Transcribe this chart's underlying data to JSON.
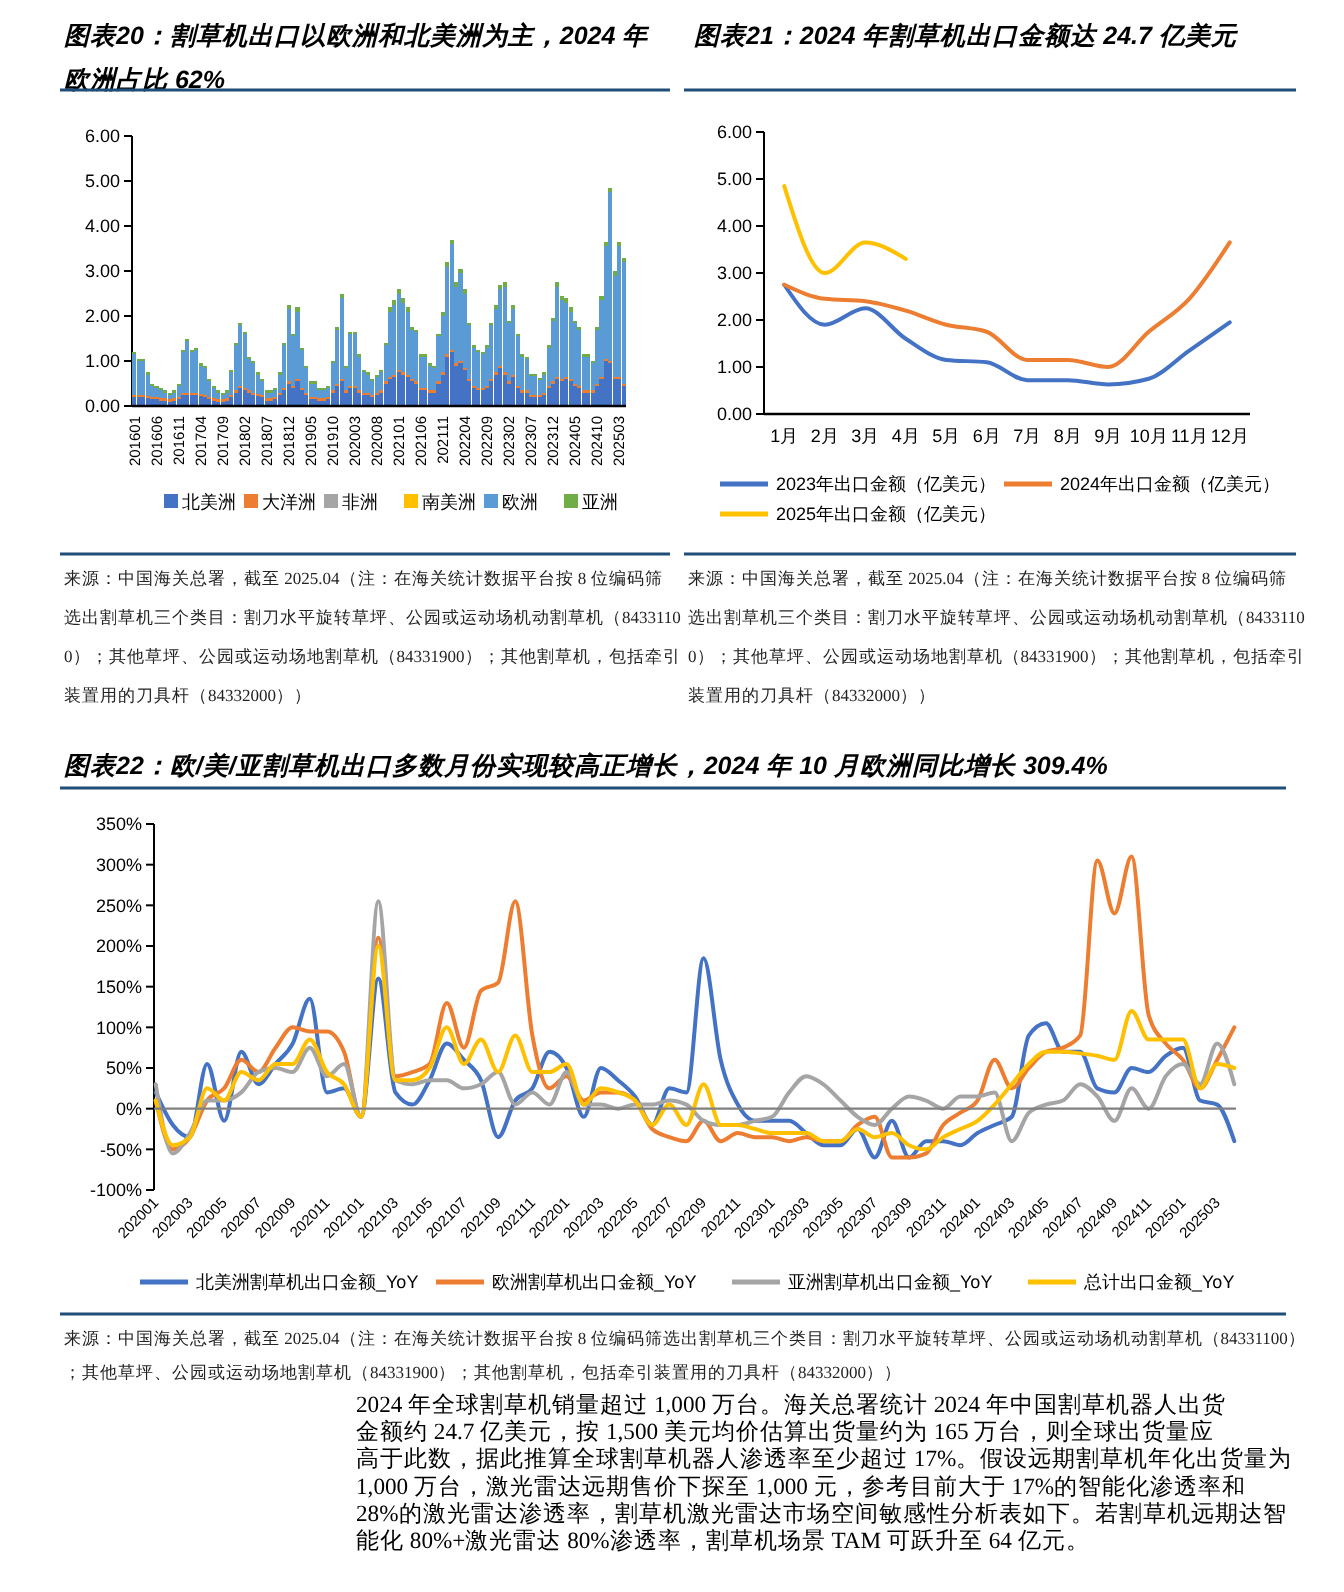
{
  "chart_data": [
    {
      "type": "bar",
      "title": "图表20：割草机出口以欧洲和北美洲为主，2024 年欧洲占比 62%",
      "stacked": true,
      "legend": "bottom",
      "categories": [
        "201601",
        null,
        null,
        null,
        null,
        "201606",
        null,
        null,
        null,
        null,
        "201611",
        null,
        null,
        null,
        null,
        "201704",
        null,
        null,
        null,
        null,
        "201709",
        null,
        null,
        null,
        null,
        "201802",
        null,
        null,
        null,
        null,
        "201807",
        null,
        null,
        null,
        null,
        "201812",
        null,
        null,
        null,
        null,
        "201905",
        null,
        null,
        null,
        null,
        "201910",
        null,
        null,
        null,
        null,
        "202003",
        null,
        null,
        null,
        null,
        "202008",
        null,
        null,
        null,
        null,
        "202101",
        null,
        null,
        null,
        null,
        "202106",
        null,
        null,
        null,
        null,
        "202111",
        null,
        null,
        null,
        null,
        "202204",
        null,
        null,
        null,
        null,
        "202209",
        null,
        null,
        null,
        null,
        "202302",
        null,
        null,
        null,
        null,
        "202307",
        null,
        null,
        null,
        null,
        "202312",
        null,
        null,
        null,
        null,
        "202405",
        null,
        null,
        null,
        null,
        "202410",
        null,
        null,
        null,
        null,
        "202503",
        null
      ],
      "ylim": [
        0,
        6
      ],
      "yticks": [
        {
          "value": 0,
          "label": "0.00"
        },
        {
          "value": 1,
          "label": "1.00"
        },
        {
          "value": 2,
          "label": "2.00"
        },
        {
          "value": 3,
          "label": "3.00"
        },
        {
          "value": 4,
          "label": "4.00"
        },
        {
          "value": 5,
          "label": "5.00"
        },
        {
          "value": 6,
          "label": "6.00"
        }
      ],
      "series": [
        {
          "name": "北美洲",
          "color": "#4472c4",
          "values": [
            0.2,
            0.2,
            0.2,
            0.18,
            0.15,
            0.15,
            0.12,
            0.12,
            0.1,
            0.12,
            0.15,
            0.25,
            0.25,
            0.25,
            0.25,
            0.22,
            0.2,
            0.15,
            0.12,
            0.1,
            0.1,
            0.12,
            0.2,
            0.3,
            0.4,
            0.35,
            0.3,
            0.25,
            0.22,
            0.2,
            0.12,
            0.12,
            0.15,
            0.25,
            0.35,
            0.5,
            0.4,
            0.55,
            0.35,
            0.25,
            0.15,
            0.15,
            0.12,
            0.12,
            0.15,
            0.3,
            0.45,
            0.55,
            0.3,
            0.4,
            0.4,
            0.3,
            0.25,
            0.25,
            0.2,
            0.25,
            0.3,
            0.5,
            0.6,
            0.65,
            0.75,
            0.7,
            0.65,
            0.55,
            0.5,
            0.35,
            0.35,
            0.3,
            0.3,
            0.5,
            0.7,
            1.1,
            1.2,
            0.9,
            0.95,
            0.8,
            0.55,
            0.4,
            0.35,
            0.35,
            0.4,
            0.55,
            0.7,
            0.85,
            0.7,
            0.5,
            0.65,
            0.4,
            0.3,
            0.3,
            0.2,
            0.2,
            0.2,
            0.25,
            0.4,
            0.5,
            0.6,
            0.55,
            0.6,
            0.55,
            0.45,
            0.4,
            0.3,
            0.3,
            0.3,
            0.45,
            0.6,
            1.0,
            0.95,
            0.6,
            0.6,
            0.45
          ]
        },
        {
          "name": "大洋洲",
          "color": "#ed7d31",
          "values": [
            0.05,
            0.05,
            0.05,
            0.05,
            0.05,
            0.05,
            0.05,
            0.05,
            0.05,
            0.05,
            0.05,
            0.05,
            0.05,
            0.05,
            0.05,
            0.05,
            0.05,
            0.05,
            0.05,
            0.05,
            0.05,
            0.05,
            0.05,
            0.05,
            0.05,
            0.05,
            0.05,
            0.05,
            0.05,
            0.05,
            0.05,
            0.05,
            0.05,
            0.05,
            0.05,
            0.05,
            0.05,
            0.05,
            0.05,
            0.05,
            0.05,
            0.05,
            0.05,
            0.05,
            0.05,
            0.05,
            0.05,
            0.05,
            0.05,
            0.05,
            0.05,
            0.05,
            0.05,
            0.05,
            0.05,
            0.05,
            0.05,
            0.05,
            0.05,
            0.05,
            0.05,
            0.05,
            0.05,
            0.05,
            0.05,
            0.05,
            0.05,
            0.05,
            0.05,
            0.05,
            0.05,
            0.05,
            0.05,
            0.05,
            0.05,
            0.05,
            0.05,
            0.05,
            0.05,
            0.05,
            0.05,
            0.05,
            0.05,
            0.05,
            0.05,
            0.05,
            0.05,
            0.05,
            0.05,
            0.05,
            0.05,
            0.05,
            0.05,
            0.05,
            0.05,
            0.05,
            0.05,
            0.05,
            0.05,
            0.05,
            0.05,
            0.05,
            0.05,
            0.05,
            0.05,
            0.05,
            0.05,
            0.05,
            0.05,
            0.05,
            0.05,
            0.05
          ]
        },
        {
          "name": "非洲",
          "color": "#a5a5a5",
          "values": [
            null,
            null,
            null,
            null,
            null,
            null,
            null,
            null,
            null,
            null,
            null,
            null,
            null,
            null,
            null,
            null,
            null,
            null,
            null,
            null,
            null,
            null,
            null,
            null,
            null,
            null,
            null,
            null,
            null,
            null,
            null,
            null,
            null,
            null,
            null,
            null,
            null,
            null,
            null,
            null,
            null,
            null,
            null,
            null,
            null,
            null,
            null,
            null,
            null,
            null,
            null,
            null,
            null,
            null,
            null,
            null,
            null,
            null,
            null,
            null,
            null,
            null,
            null,
            null,
            null,
            null,
            null,
            null,
            null,
            null,
            null,
            null,
            null,
            null,
            null,
            null,
            null,
            null,
            null,
            null,
            null,
            null,
            null,
            null,
            null,
            null,
            null,
            null,
            null,
            null,
            null,
            null,
            null,
            null,
            null,
            null,
            null,
            null,
            null,
            null,
            null,
            null,
            null,
            null,
            null,
            null,
            null,
            null,
            null,
            null,
            null,
            null
          ]
        },
        {
          "name": "南美洲",
          "color": "#ffc000",
          "values": [
            null,
            null,
            null,
            null,
            null,
            null,
            null,
            null,
            null,
            null,
            null,
            null,
            null,
            null,
            null,
            null,
            null,
            null,
            null,
            null,
            null,
            null,
            null,
            null,
            null,
            null,
            null,
            null,
            null,
            null,
            null,
            null,
            null,
            null,
            null,
            null,
            null,
            null,
            null,
            null,
            null,
            null,
            null,
            null,
            null,
            null,
            null,
            null,
            null,
            null,
            null,
            null,
            null,
            null,
            null,
            null,
            null,
            null,
            null,
            null,
            null,
            null,
            null,
            null,
            null,
            null,
            null,
            null,
            null,
            null,
            null,
            null,
            null,
            null,
            null,
            null,
            null,
            null,
            null,
            null,
            null,
            null,
            null,
            null,
            null,
            null,
            null,
            null,
            null,
            null,
            null,
            null,
            null,
            null,
            null,
            null,
            null,
            null,
            null,
            null,
            null,
            null,
            null,
            null,
            null,
            null,
            null,
            null,
            null,
            null,
            null,
            null
          ]
        },
        {
          "name": "欧洲",
          "color": "#5b9bd5",
          "values": [
            0.9,
            0.75,
            0.75,
            0.47,
            0.25,
            0.2,
            0.18,
            0.13,
            0.1,
            0.13,
            0.25,
            0.9,
            1.15,
            0.9,
            0.95,
            0.63,
            0.6,
            0.35,
            0.23,
            0.15,
            0.1,
            0.13,
            0.5,
            1.0,
            1.35,
            1.2,
            0.7,
            0.65,
            0.43,
            0.3,
            0.13,
            0.13,
            0.15,
            0.4,
            0.95,
            1.6,
            1.1,
            1.5,
            0.85,
            0.55,
            0.3,
            0.3,
            0.18,
            0.18,
            0.2,
            0.6,
            1.2,
            1.8,
            0.5,
            1.15,
            1.15,
            0.75,
            0.45,
            0.4,
            0.3,
            0.35,
            0.4,
            0.8,
            1.45,
            1.55,
            1.7,
            1.55,
            1.4,
            1.1,
            1.1,
            0.7,
            0.7,
            0.55,
            0.5,
            1.0,
            1.25,
            1.95,
            2.35,
            1.7,
            1.95,
            1.65,
            1.2,
            0.85,
            0.8,
            0.75,
            0.85,
            1.2,
            1.4,
            1.7,
            1.9,
            1.3,
            1.45,
            1.1,
            0.75,
            0.7,
            0.42,
            0.42,
            0.33,
            0.4,
            0.85,
            1.35,
            2.0,
            1.75,
            1.65,
            1.5,
            1.35,
            1.25,
            0.75,
            0.75,
            0.6,
            1.2,
            1.7,
            2.5,
            3.75,
            2.25,
            2.9,
            2.7
          ]
        },
        {
          "name": "亚洲",
          "color": "#70ad47",
          "values": [
            0.05,
            0.05,
            0.05,
            0.05,
            0.05,
            0.05,
            0.05,
            0.05,
            0.05,
            0.05,
            0.05,
            0.05,
            0.05,
            0.05,
            0.05,
            0.05,
            0.05,
            0.05,
            0.05,
            0.05,
            0.05,
            0.05,
            0.05,
            0.05,
            0.05,
            0.05,
            0.05,
            0.05,
            0.05,
            0.05,
            0.05,
            0.05,
            0.05,
            0.05,
            0.05,
            0.1,
            0.05,
            0.1,
            0.05,
            0.05,
            0.05,
            0.05,
            0.05,
            0.05,
            0.05,
            0.05,
            0.05,
            0.1,
            0.05,
            0.05,
            0.05,
            0.05,
            0.05,
            0.05,
            0.05,
            0.05,
            0.05,
            0.05,
            0.1,
            0.1,
            0.1,
            0.1,
            0.1,
            0.05,
            0.05,
            0.05,
            0.05,
            0.05,
            0.05,
            0.05,
            0.1,
            0.1,
            0.1,
            0.1,
            0.1,
            0.1,
            0.05,
            0.05,
            0.05,
            0.05,
            0.05,
            0.05,
            0.1,
            0.1,
            0.1,
            0.05,
            0.1,
            0.05,
            0.05,
            0.05,
            0.05,
            0.05,
            0.05,
            0.05,
            0.05,
            0.05,
            0.1,
            0.1,
            0.1,
            0.1,
            0.05,
            0.05,
            0.05,
            0.05,
            0.05,
            0.05,
            0.1,
            0.1,
            0.1,
            0.1,
            0.1,
            0.1
          ]
        }
      ],
      "annotations": [
        "来源：中国海关总署，截至 2025.04（注：在海关统计数据平台按 8 位编码筛选出割草机三个类目：割刀水平旋转草坪、公园或运动场机动割草机（84331100）；其他草坪、公园或运动场地割草机（84331900）；其他割草机，包括牵引装置用的刀具杆（84332000））"
      ]
    },
    {
      "type": "line",
      "title": "图表21：2024 年割草机出口金额达 24.7 亿美元",
      "legend": "bottom",
      "categories": [
        "1月",
        "2月",
        "3月",
        "4月",
        "5月",
        "6月",
        "7月",
        "8月",
        "9月",
        "10月",
        "11月",
        "12月"
      ],
      "ylim": [
        0,
        6
      ],
      "yticks": [
        {
          "value": 0,
          "label": "0.00"
        },
        {
          "value": 1,
          "label": "1.00"
        },
        {
          "value": 2,
          "label": "2.00"
        },
        {
          "value": 3,
          "label": "3.00"
        },
        {
          "value": 4,
          "label": "4.00"
        },
        {
          "value": 5,
          "label": "5.00"
        },
        {
          "value": 6,
          "label": "6.00"
        }
      ],
      "series": [
        {
          "name": "2023年出口金额（亿美元）",
          "color": "#4472c4",
          "values": [
            2.75,
            1.9,
            2.25,
            1.6,
            1.15,
            1.1,
            0.72,
            0.72,
            0.63,
            0.75,
            1.35,
            1.95
          ]
        },
        {
          "name": "2024年出口金额（亿美元）",
          "color": "#ed7d31",
          "values": [
            2.75,
            2.45,
            2.4,
            2.2,
            1.9,
            1.75,
            1.15,
            1.15,
            1.0,
            1.75,
            2.45,
            3.65
          ]
        },
        {
          "name": "2025年出口金额（亿美元）",
          "color": "#ffc000",
          "values": [
            4.85,
            3.0,
            3.65,
            3.3,
            null,
            null,
            null,
            null,
            null,
            null,
            null,
            null
          ]
        }
      ],
      "annotations": [
        "来源：中国海关总署，截至 2025.04（注：在海关统计数据平台按 8 位编码筛选出割草机三个类目：割刀水平旋转草坪、公园或运动场机动割草机（84331100）；其他草坪、公园或运动场地割草机（84331900）；其他割草机，包括牵引装置用的刀具杆（84332000））"
      ]
    },
    {
      "type": "line",
      "title": "图表22：欧/美/亚割草机出口多数月份实现较高正增长，2024 年 10 月欧洲同比增长 309.4%",
      "legend": "bottom",
      "categories": [
        "202001",
        null,
        "202003",
        null,
        "202005",
        null,
        "202007",
        null,
        "202009",
        null,
        "202011",
        null,
        "202101",
        null,
        "202103",
        null,
        "202105",
        null,
        "202107",
        null,
        "202109",
        null,
        "202111",
        null,
        "202201",
        null,
        "202203",
        null,
        "202205",
        null,
        "202207",
        null,
        "202209",
        null,
        "202211",
        null,
        "202301",
        null,
        "202303",
        null,
        "202305",
        null,
        "202307",
        null,
        "202309",
        null,
        "202311",
        null,
        "202401",
        null,
        "202403",
        null,
        "202405",
        null,
        "202407",
        null,
        "202409",
        null,
        "202411",
        null,
        "202501",
        null,
        "202503",
        null
      ],
      "ylim": [
        -100,
        350
      ],
      "yticks": [
        {
          "value": -100,
          "label": "-100%"
        },
        {
          "value": -50,
          "label": "-50%"
        },
        {
          "value": 0,
          "label": "0%"
        },
        {
          "value": 50,
          "label": "50%"
        },
        {
          "value": 100,
          "label": "100%"
        },
        {
          "value": 150,
          "label": "150%"
        },
        {
          "value": 200,
          "label": "200%"
        },
        {
          "value": 250,
          "label": "250%"
        },
        {
          "value": 300,
          "label": "300%"
        },
        {
          "value": 350,
          "label": "350%"
        }
      ],
      "series": [
        {
          "name": "北美洲割草机出口金额_YoY",
          "color": "#4472c4",
          "values": [
            20,
            -20,
            -35,
            55,
            -15,
            70,
            30,
            55,
            80,
            135,
            20,
            25,
            -10,
            160,
            20,
            5,
            35,
            80,
            60,
            35,
            -35,
            10,
            25,
            70,
            50,
            -10,
            50,
            35,
            15,
            -20,
            25,
            20,
            185,
            60,
            5,
            -15,
            -15,
            -15,
            -30,
            -45,
            -45,
            -25,
            -60,
            -15,
            -60,
            -40,
            -40,
            -45,
            -30,
            -20,
            -10,
            90,
            105,
            70,
            70,
            25,
            20,
            50,
            45,
            65,
            75,
            10,
            5,
            -40
          ]
        },
        {
          "name": "欧洲割草机出口金额_YoY",
          "color": "#ed7d31",
          "values": [
            10,
            -50,
            -35,
            10,
            25,
            60,
            45,
            75,
            100,
            95,
            95,
            70,
            -10,
            210,
            40,
            45,
            55,
            130,
            75,
            145,
            155,
            255,
            90,
            25,
            40,
            10,
            20,
            20,
            10,
            -25,
            -35,
            -40,
            -15,
            -40,
            -30,
            -35,
            -35,
            -40,
            -35,
            -40,
            -40,
            -20,
            -10,
            -60,
            -60,
            -55,
            -20,
            -5,
            10,
            60,
            25,
            50,
            70,
            75,
            90,
            305,
            240,
            310,
            115,
            80,
            60,
            25,
            60,
            100
          ]
        },
        {
          "name": "亚洲割草机出口金额_YoY",
          "color": "#a5a5a5",
          "values": [
            30,
            -55,
            -30,
            10,
            10,
            20,
            45,
            50,
            45,
            75,
            40,
            55,
            -10,
            255,
            35,
            30,
            35,
            35,
            25,
            30,
            45,
            5,
            20,
            5,
            45,
            5,
            5,
            0,
            5,
            5,
            10,
            5,
            -15,
            -20,
            -20,
            -15,
            -10,
            20,
            40,
            30,
            10,
            -10,
            -20,
            0,
            15,
            10,
            0,
            15,
            15,
            20,
            -40,
            -5,
            5,
            10,
            30,
            15,
            -15,
            25,
            0,
            40,
            55,
            30,
            80,
            30
          ]
        },
        {
          "name": "总计出口金额_YoY",
          "color": "#ffc000",
          "values": [
            10,
            -45,
            -35,
            25,
            10,
            45,
            35,
            55,
            55,
            85,
            45,
            30,
            -10,
            200,
            35,
            35,
            50,
            100,
            55,
            85,
            45,
            90,
            45,
            45,
            55,
            5,
            25,
            20,
            10,
            -20,
            5,
            -20,
            30,
            -20,
            -20,
            -25,
            -30,
            -30,
            -30,
            -40,
            -40,
            -25,
            -35,
            -30,
            -45,
            -50,
            -35,
            -25,
            -15,
            5,
            30,
            55,
            70,
            70,
            68,
            65,
            60,
            120,
            85,
            85,
            85,
            25,
            55,
            50
          ]
        }
      ],
      "annotations": [
        "来源：中国海关总署，截至 2025.04（注：在海关统计数据平台按 8 位编码筛选出割草机三个类目：割刀水平旋转草坪、公园或运动场机动割草机（84331100）；其他草坪、公园或运动场地割草机（84331900）；其他割草机，包括牵引装置用的刀具杆（84332000））"
      ]
    },
    {
      "type": "other",
      "annotations": [
        "2024 年全球割草机销量超过 1,000 万台。海关总署统计 2024 年中国割草机器人出货金额约 24.7 亿美元，按 1,500 美元均价估算出货量约为 165 万台，则全球出货量应高于此数，据此推算全球割草机器人渗透率至少超过 17%。假设远期割草机年化出货量为 1,000 万台，激光雷达远期售价下探至 1,000 元，参考目前大于 17%的智能化渗透率和 28%的激光雷达渗透率，割草机激光雷达市场空间敏感性分析表如下。若割草机远期达智能化 80%+激光雷达 80%渗透率，割草机场景 TAM 可跃升至 64 亿元。"
      ]
    }
  ]
}
